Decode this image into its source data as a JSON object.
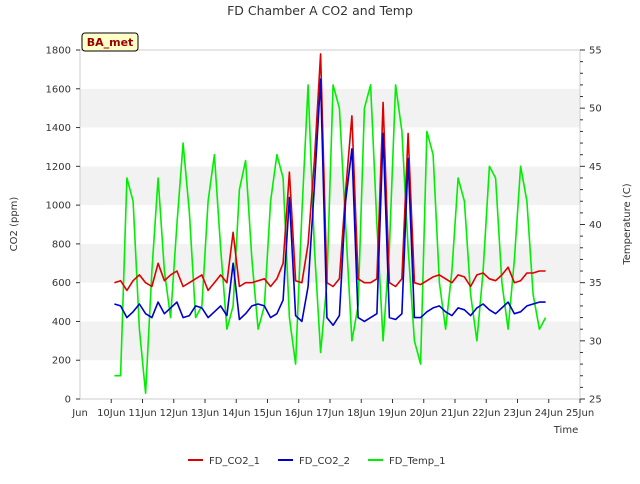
{
  "chart_data": {
    "type": "line",
    "title": "FD Chamber A CO2 and Temp",
    "xlabel": "Time",
    "ylabel_left": "CO2 (ppm)",
    "ylabel_right": "Temperature (C)",
    "badge": "BA_met",
    "x_tick_labels": [
      "Jun 10",
      "Jun 11",
      "Jun 12",
      "Jun 13",
      "Jun 14",
      "Jun 15",
      "Jun 16",
      "Jun 17",
      "Jun 18",
      "Jun 19",
      "Jun 20",
      "Jun 21",
      "Jun 22",
      "Jun 23",
      "Jun 24",
      "Jun 25"
    ],
    "xlim": [
      "Jun 10",
      "Jun 25"
    ],
    "ylim_left": [
      0,
      1800
    ],
    "y_ticks_left": [
      "0",
      "200",
      "400",
      "600",
      "800",
      "1000",
      "1200",
      "1400",
      "1600",
      "1800"
    ],
    "ylim_right": [
      25,
      55
    ],
    "y_ticks_right": [
      "25",
      "30",
      "35",
      "40",
      "45",
      "50",
      "55"
    ],
    "grid": "horizontal bands",
    "legend_position": "bottom",
    "x_days": [
      10.1,
      10.3,
      10.5,
      10.7,
      10.9,
      11.1,
      11.3,
      11.5,
      11.7,
      11.9,
      12.1,
      12.3,
      12.5,
      12.7,
      12.9,
      13.1,
      13.3,
      13.5,
      13.7,
      13.9,
      14.1,
      14.3,
      14.5,
      14.7,
      14.9,
      15.1,
      15.3,
      15.5,
      15.7,
      15.9,
      16.1,
      16.3,
      16.5,
      16.7,
      16.9,
      17.1,
      17.3,
      17.5,
      17.7,
      17.9,
      18.1,
      18.3,
      18.5,
      18.7,
      18.9,
      19.1,
      19.3,
      19.5,
      19.7,
      19.9,
      20.1,
      20.3,
      20.5,
      20.7,
      20.9,
      21.1,
      21.3,
      21.5,
      21.7,
      21.9,
      22.1,
      22.3,
      22.5,
      22.7,
      22.9,
      23.1,
      23.3,
      23.5,
      23.7,
      23.9
    ],
    "series": [
      {
        "name": "FD_CO2_1",
        "color": "#dd0000",
        "axis": "left",
        "values": [
          600,
          610,
          560,
          610,
          640,
          600,
          580,
          700,
          610,
          640,
          660,
          580,
          600,
          620,
          640,
          560,
          600,
          640,
          600,
          860,
          580,
          600,
          600,
          610,
          620,
          580,
          620,
          700,
          1170,
          610,
          600,
          800,
          1230,
          1780,
          600,
          580,
          620,
          1070,
          1460,
          620,
          600,
          600,
          620,
          1530,
          600,
          580,
          620,
          1370,
          600,
          590,
          610,
          630,
          640,
          620,
          600,
          640,
          630,
          580,
          640,
          650,
          620,
          610,
          640,
          680,
          600,
          610,
          650,
          650,
          660,
          660
        ]
      },
      {
        "name": "FD_CO2_2",
        "color": "#0000cc",
        "axis": "left",
        "values": [
          490,
          480,
          420,
          450,
          490,
          440,
          420,
          500,
          440,
          470,
          500,
          420,
          430,
          480,
          470,
          420,
          450,
          480,
          430,
          700,
          410,
          440,
          480,
          490,
          480,
          420,
          440,
          510,
          1040,
          430,
          400,
          580,
          1100,
          1650,
          420,
          380,
          430,
          1020,
          1290,
          420,
          400,
          420,
          440,
          1370,
          420,
          410,
          440,
          1240,
          420,
          420,
          450,
          470,
          480,
          450,
          430,
          470,
          460,
          430,
          470,
          490,
          460,
          440,
          470,
          500,
          440,
          450,
          480,
          490,
          500,
          500
        ]
      },
      {
        "name": "FD_Temp_1",
        "color": "#00ee00",
        "axis": "right",
        "values": [
          27.0,
          27.0,
          44.0,
          42.0,
          31.0,
          25.5,
          36.0,
          44.0,
          36.0,
          32.0,
          40.0,
          47.0,
          41.0,
          32.0,
          33.0,
          42.0,
          46.0,
          38.0,
          31.0,
          33.0,
          43.0,
          45.5,
          37.0,
          31.0,
          33.0,
          42.0,
          46.0,
          44.0,
          32.0,
          28.0,
          41.0,
          52.0,
          38.0,
          29.0,
          35.0,
          52.0,
          50.0,
          40.0,
          30.0,
          33.0,
          50.0,
          52.0,
          40.0,
          30.0,
          38.0,
          52.0,
          48.0,
          38.0,
          30.0,
          28.0,
          48.0,
          46.0,
          35.0,
          31.0,
          36.0,
          44.0,
          42.0,
          34.0,
          30.0,
          36.0,
          45.0,
          44.0,
          35.0,
          31.0,
          37.0,
          45.0,
          42.0,
          34.0,
          31.0,
          32.0
        ]
      }
    ]
  }
}
